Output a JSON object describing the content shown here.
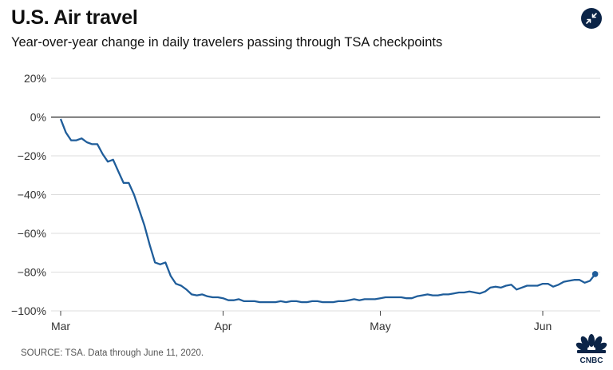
{
  "header": {
    "title": "U.S. Air travel",
    "subtitle": "Year-over-year change in daily travelers passing through TSA checkpoints"
  },
  "footer": {
    "source": "SOURCE: TSA. Data through June 11, 2020.",
    "logo_text": "CNBC"
  },
  "icons": {
    "expand": "expand-icon",
    "logo": "cnbc-peacock-icon"
  },
  "colors": {
    "line": "#1f5d9a",
    "grid": "#dddddd",
    "zero_line": "#222222",
    "button": "#0b2447"
  },
  "chart_data": {
    "type": "line",
    "title": "U.S. Air travel",
    "subtitle": "Year-over-year change in daily travelers passing through TSA checkpoints",
    "xlabel": "",
    "ylabel": "",
    "ylim": [
      -100,
      20
    ],
    "yticks": [
      20,
      0,
      -20,
      -40,
      -60,
      -80,
      -100
    ],
    "ytick_labels": [
      "20%",
      "0%",
      "−20%",
      "−40%",
      "−60%",
      "−80%",
      "−100%"
    ],
    "xticks": [
      {
        "label": "Mar",
        "day": 0
      },
      {
        "label": "Apr",
        "day": 31
      },
      {
        "label": "May",
        "day": 61
      },
      {
        "label": "Jun",
        "day": 92
      }
    ],
    "grid": true,
    "x_start": "2020-03-01",
    "x_end": "2020-06-11",
    "series": [
      {
        "name": "TSA travelers YoY change",
        "end_marker": true,
        "points": [
          [
            0,
            -1
          ],
          [
            1,
            -8
          ],
          [
            2,
            -12
          ],
          [
            3,
            -12
          ],
          [
            4,
            -11
          ],
          [
            5,
            -13
          ],
          [
            6,
            -14
          ],
          [
            7,
            -14
          ],
          [
            8,
            -19
          ],
          [
            9,
            -23
          ],
          [
            10,
            -22
          ],
          [
            11,
            -28
          ],
          [
            12,
            -34
          ],
          [
            13,
            -34
          ],
          [
            14,
            -40
          ],
          [
            15,
            -48
          ],
          [
            16,
            -56
          ],
          [
            17,
            -66
          ],
          [
            18,
            -75
          ],
          [
            19,
            -76
          ],
          [
            20,
            -75
          ],
          [
            21,
            -82
          ],
          [
            22,
            -86
          ],
          [
            23,
            -87
          ],
          [
            24,
            -89
          ],
          [
            25,
            -91.5
          ],
          [
            26,
            -92
          ],
          [
            27,
            -91.5
          ],
          [
            28,
            -92.5
          ],
          [
            29,
            -93
          ],
          [
            30,
            -93
          ],
          [
            31,
            -93.5
          ],
          [
            32,
            -94.5
          ],
          [
            33,
            -94.5
          ],
          [
            34,
            -94
          ],
          [
            35,
            -95
          ],
          [
            36,
            -95
          ],
          [
            37,
            -95
          ],
          [
            38,
            -95.5
          ],
          [
            39,
            -95.5
          ],
          [
            40,
            -95.5
          ],
          [
            41,
            -95.5
          ],
          [
            42,
            -95
          ],
          [
            43,
            -95.5
          ],
          [
            44,
            -95
          ],
          [
            45,
            -95
          ],
          [
            46,
            -95.5
          ],
          [
            47,
            -95.5
          ],
          [
            48,
            -95
          ],
          [
            49,
            -95
          ],
          [
            50,
            -95.5
          ],
          [
            51,
            -95.5
          ],
          [
            52,
            -95.5
          ],
          [
            53,
            -95
          ],
          [
            54,
            -95
          ],
          [
            55,
            -94.5
          ],
          [
            56,
            -94
          ],
          [
            57,
            -94.5
          ],
          [
            58,
            -94
          ],
          [
            59,
            -94
          ],
          [
            60,
            -94
          ],
          [
            61,
            -93.5
          ],
          [
            62,
            -93
          ],
          [
            63,
            -93
          ],
          [
            64,
            -93
          ],
          [
            65,
            -93
          ],
          [
            66,
            -93.5
          ],
          [
            67,
            -93.5
          ],
          [
            68,
            -92.5
          ],
          [
            69,
            -92
          ],
          [
            70,
            -91.5
          ],
          [
            71,
            -92
          ],
          [
            72,
            -92
          ],
          [
            73,
            -91.5
          ],
          [
            74,
            -91.5
          ],
          [
            75,
            -91
          ],
          [
            76,
            -90.5
          ],
          [
            77,
            -90.5
          ],
          [
            78,
            -90
          ],
          [
            79,
            -90.5
          ],
          [
            80,
            -91
          ],
          [
            81,
            -90
          ],
          [
            82,
            -88
          ],
          [
            83,
            -87.5
          ],
          [
            84,
            -88
          ],
          [
            85,
            -87
          ],
          [
            86,
            -86.5
          ],
          [
            87,
            -89
          ],
          [
            88,
            -88
          ],
          [
            89,
            -87
          ],
          [
            90,
            -87
          ],
          [
            91,
            -87
          ],
          [
            92,
            -86
          ],
          [
            93,
            -86
          ],
          [
            94,
            -87.5
          ],
          [
            95,
            -86.5
          ],
          [
            96,
            -85
          ],
          [
            97,
            -84.5
          ],
          [
            98,
            -84
          ],
          [
            99,
            -84
          ],
          [
            100,
            -85.5
          ],
          [
            101,
            -84.5
          ],
          [
            102,
            -81
          ]
        ]
      }
    ]
  }
}
